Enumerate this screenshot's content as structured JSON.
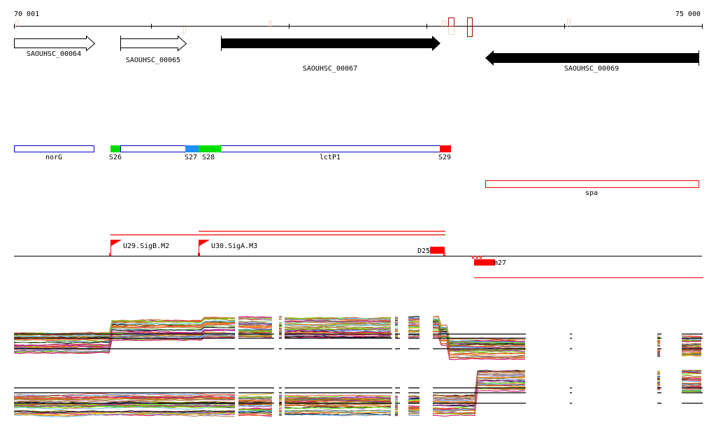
{
  "ruler": {
    "start_label": "70 001",
    "end_label": "75 000"
  },
  "genes": [
    {
      "name": "SAOUHSC_00064",
      "strand": "+",
      "style": "open"
    },
    {
      "name": "SAOUHSC_00065",
      "strand": "+",
      "style": "open"
    },
    {
      "name": "SAOUHSC_00067",
      "strand": "+",
      "style": "filled"
    },
    {
      "name": "SAOUHSC_00069",
      "strand": "-",
      "style": "filled"
    }
  ],
  "segments": [
    {
      "label": "norG"
    },
    {
      "label": "S26"
    },
    {
      "label": "S27"
    },
    {
      "label": "S28"
    },
    {
      "label": "lctP1"
    },
    {
      "label": "S29"
    },
    {
      "label": "spa"
    }
  ],
  "promoters": [
    {
      "label": "U29.SigB.M2"
    },
    {
      "label": "U30.SigA.M3"
    },
    {
      "label": "D25"
    },
    {
      "label": "m27"
    }
  ],
  "colors": {
    "green": "#00dd00",
    "blue": "#1e90ff",
    "red": "#ff0000",
    "dark_red": "#aa0000",
    "outline_blue": "#0000cc",
    "trace_palette": [
      "#cc6633",
      "#e8731c",
      "#66bbff",
      "#993399",
      "#66ee00",
      "#888800",
      "#ff4444",
      "#aa7744",
      "#3366cc",
      "#000000",
      "#cc99cc",
      "#996600",
      "#ffaa00",
      "#666699",
      "#cc0066",
      "#77aa55"
    ]
  }
}
